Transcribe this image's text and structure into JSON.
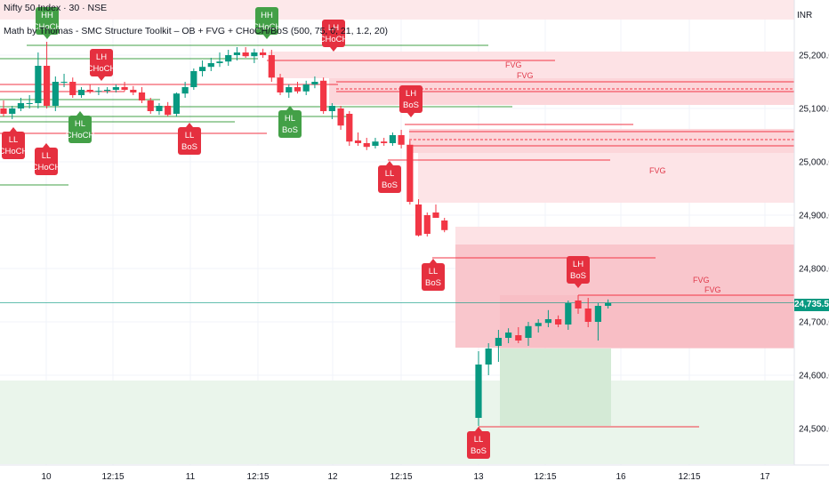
{
  "header": {
    "symbol": "Nifty 50 Index · 30 · NSE",
    "indicator": "Math by Thomas - SMC Structure Toolkit – OB + FVG + CHoCH/BoS (500, 75, 0, 21, 1.2, 20)",
    "currency": "INR"
  },
  "price_axis": {
    "labels": [
      "25,200.00",
      "25,100.00",
      "25,000.00",
      "24,900.00",
      "24,800.00",
      "24,700.00",
      "24,600.00",
      "24,500.00"
    ],
    "values": [
      25200,
      25100,
      25000,
      24900,
      24800,
      24700,
      24600,
      24500
    ],
    "current_price": "24,735.55",
    "current_value": 24735.55
  },
  "time_axis": {
    "labels": [
      "10",
      "12:15",
      "11",
      "12:15",
      "12",
      "12:15",
      "13",
      "12:15",
      "16",
      "12:15",
      "17"
    ],
    "day_labels": [
      "10",
      "11",
      "12",
      "13",
      "16",
      "17"
    ]
  },
  "colors": {
    "up": "#089981",
    "down": "#f23645",
    "bull_label": "#43a047",
    "bear_label": "#e5303f",
    "fvg_text": "#e0394a",
    "zone_red": "#f7c0c6",
    "zone_green": "#d7ecd9"
  },
  "structure_labels": [
    {
      "line1": "LL",
      "line2": "CHoCH",
      "kind": "bear",
      "pointer": "up",
      "x": 0
    },
    {
      "line1": "HH",
      "line2": "CHoCH",
      "kind": "bull",
      "pointer": "down",
      "x": 0
    },
    {
      "line1": "LL",
      "line2": "CHoCH",
      "kind": "bear",
      "pointer": "up",
      "x": 0
    },
    {
      "line1": "LH",
      "line2": "CHoCH",
      "kind": "bear",
      "pointer": "down",
      "x": 0
    },
    {
      "line1": "HL",
      "line2": "CHoCH",
      "kind": "bull",
      "pointer": "up",
      "x": 0
    },
    {
      "line1": "LL",
      "line2": "BoS",
      "kind": "bear",
      "pointer": "up",
      "x": 0
    },
    {
      "line1": "HH",
      "line2": "CHoCH",
      "kind": "bull",
      "pointer": "down",
      "x": 0
    },
    {
      "line1": "HL",
      "line2": "BoS",
      "kind": "bull",
      "pointer": "up",
      "x": 0
    },
    {
      "line1": "LH",
      "line2": "CHoCH",
      "kind": "bear",
      "pointer": "down",
      "x": 0
    },
    {
      "line1": "LH",
      "line2": "BoS",
      "kind": "bear",
      "pointer": "down",
      "x": 0
    },
    {
      "line1": "LL",
      "line2": "BoS",
      "kind": "bear",
      "pointer": "up",
      "x": 0
    },
    {
      "line1": "LL",
      "line2": "BoS",
      "kind": "bear",
      "pointer": "up",
      "x": 0
    },
    {
      "line1": "LH",
      "line2": "BoS",
      "kind": "bear",
      "pointer": "down",
      "x": 0
    },
    {
      "line1": "LL",
      "line2": "BoS",
      "kind": "bear",
      "pointer": "up",
      "x": 0
    }
  ],
  "fvg_labels": [
    "FVG",
    "FVG",
    "FVG",
    "FVG",
    "FVG"
  ],
  "chart_data": {
    "type": "candlestick",
    "title": "Nifty 50 Index · 30 · NSE",
    "ylim": [
      24430,
      25290
    ],
    "current_price": 24735.55,
    "candles": [
      {
        "o": 25100,
        "h": 25115,
        "l": 25085,
        "c": 25090
      },
      {
        "o": 25090,
        "h": 25105,
        "l": 25080,
        "c": 25100
      },
      {
        "o": 25100,
        "h": 25120,
        "l": 25095,
        "c": 25110
      },
      {
        "o": 25110,
        "h": 25125,
        "l": 25100,
        "c": 25110
      },
      {
        "o": 25110,
        "h": 25205,
        "l": 25100,
        "c": 25180
      },
      {
        "o": 25180,
        "h": 25225,
        "l": 25100,
        "c": 25105
      },
      {
        "o": 25105,
        "h": 25160,
        "l": 25095,
        "c": 25150
      },
      {
        "o": 25150,
        "h": 25165,
        "l": 25140,
        "c": 25150
      },
      {
        "o": 25150,
        "h": 25158,
        "l": 25120,
        "c": 25125
      },
      {
        "o": 25125,
        "h": 25140,
        "l": 25120,
        "c": 25135
      },
      {
        "o": 25135,
        "h": 25145,
        "l": 25128,
        "c": 25132
      },
      {
        "o": 25132,
        "h": 25140,
        "l": 25125,
        "c": 25133
      },
      {
        "o": 25133,
        "h": 25140,
        "l": 25128,
        "c": 25135
      },
      {
        "o": 25135,
        "h": 25145,
        "l": 25130,
        "c": 25140
      },
      {
        "o": 25140,
        "h": 25150,
        "l": 25132,
        "c": 25135
      },
      {
        "o": 25135,
        "h": 25142,
        "l": 25125,
        "c": 25130
      },
      {
        "o": 25130,
        "h": 25140,
        "l": 25110,
        "c": 25115
      },
      {
        "o": 25115,
        "h": 25120,
        "l": 25090,
        "c": 25095
      },
      {
        "o": 25095,
        "h": 25110,
        "l": 25088,
        "c": 25105
      },
      {
        "o": 25105,
        "h": 25112,
        "l": 25085,
        "c": 25088
      },
      {
        "o": 25090,
        "h": 25130,
        "l": 25085,
        "c": 25128
      },
      {
        "o": 25128,
        "h": 25150,
        "l": 25120,
        "c": 25140
      },
      {
        "o": 25140,
        "h": 25175,
        "l": 25135,
        "c": 25170
      },
      {
        "o": 25170,
        "h": 25190,
        "l": 25160,
        "c": 25178
      },
      {
        "o": 25178,
        "h": 25195,
        "l": 25170,
        "c": 25185
      },
      {
        "o": 25185,
        "h": 25205,
        "l": 25178,
        "c": 25188
      },
      {
        "o": 25188,
        "h": 25210,
        "l": 25180,
        "c": 25200
      },
      {
        "o": 25200,
        "h": 25215,
        "l": 25190,
        "c": 25205
      },
      {
        "o": 25205,
        "h": 25215,
        "l": 25195,
        "c": 25198
      },
      {
        "o": 25198,
        "h": 25212,
        "l": 25185,
        "c": 25205
      },
      {
        "o": 25205,
        "h": 25212,
        "l": 25195,
        "c": 25200
      },
      {
        "o": 25200,
        "h": 25210,
        "l": 25150,
        "c": 25158
      },
      {
        "o": 25158,
        "h": 25165,
        "l": 25125,
        "c": 25130
      },
      {
        "o": 25130,
        "h": 25145,
        "l": 25120,
        "c": 25140
      },
      {
        "o": 25140,
        "h": 25150,
        "l": 25128,
        "c": 25132
      },
      {
        "o": 25132,
        "h": 25152,
        "l": 25125,
        "c": 25145
      },
      {
        "o": 25145,
        "h": 25160,
        "l": 25138,
        "c": 25150
      },
      {
        "o": 25152,
        "h": 25158,
        "l": 25090,
        "c": 25095
      },
      {
        "o": 25095,
        "h": 25110,
        "l": 25080,
        "c": 25105
      },
      {
        "o": 25100,
        "h": 25105,
        "l": 25060,
        "c": 25068
      },
      {
        "o": 25090,
        "h": 25095,
        "l": 25030,
        "c": 25038
      },
      {
        "o": 25040,
        "h": 25055,
        "l": 25030,
        "c": 25035
      },
      {
        "o": 25035,
        "h": 25045,
        "l": 25022,
        "c": 25028
      },
      {
        "o": 25030,
        "h": 25045,
        "l": 25025,
        "c": 25038
      },
      {
        "o": 25038,
        "h": 25045,
        "l": 25030,
        "c": 25035
      },
      {
        "o": 25035,
        "h": 25055,
        "l": 25030,
        "c": 25050
      },
      {
        "o": 25050,
        "h": 25060,
        "l": 25025,
        "c": 25032
      },
      {
        "o": 25032,
        "h": 25040,
        "l": 24920,
        "c": 24925
      },
      {
        "o": 24920,
        "h": 24930,
        "l": 24860,
        "c": 24862
      },
      {
        "o": 24900,
        "h": 24905,
        "l": 24860,
        "c": 24865
      },
      {
        "o": 24905,
        "h": 24920,
        "l": 24895,
        "c": 24895
      },
      {
        "o": 24890,
        "h": 24895,
        "l": 24868,
        "c": 24872
      },
      {
        "o": 24520,
        "h": 24645,
        "l": 24505,
        "c": 24620
      },
      {
        "o": 24620,
        "h": 24660,
        "l": 24600,
        "c": 24650
      },
      {
        "o": 24655,
        "h": 24685,
        "l": 24625,
        "c": 24670
      },
      {
        "o": 24670,
        "h": 24688,
        "l": 24660,
        "c": 24680
      },
      {
        "o": 24675,
        "h": 24690,
        "l": 24660,
        "c": 24665
      },
      {
        "o": 24670,
        "h": 24700,
        "l": 24655,
        "c": 24692
      },
      {
        "o": 24692,
        "h": 24705,
        "l": 24680,
        "c": 24698
      },
      {
        "o": 24698,
        "h": 24722,
        "l": 24690,
        "c": 24705
      },
      {
        "o": 24705,
        "h": 24712,
        "l": 24690,
        "c": 24695
      },
      {
        "o": 24695,
        "h": 24740,
        "l": 24685,
        "c": 24735
      },
      {
        "o": 24740,
        "h": 24750,
        "l": 24715,
        "c": 24725
      },
      {
        "o": 24725,
        "h": 24745,
        "l": 24690,
        "c": 24700
      },
      {
        "o": 24700,
        "h": 24735,
        "l": 24665,
        "c": 24730
      },
      {
        "o": 24730,
        "h": 24742,
        "l": 24725,
        "c": 24736
      }
    ]
  }
}
